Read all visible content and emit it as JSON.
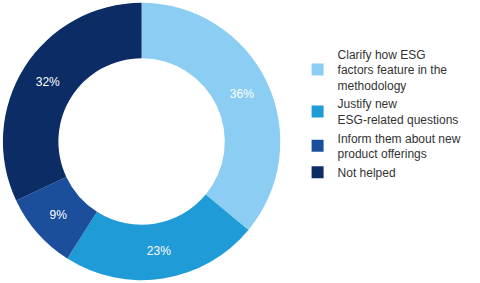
{
  "chart_data": {
    "type": "pie",
    "categories": [
      "Clarify how ESG factors feature in the methodology",
      "Justify new ESG-related questions",
      "Inform them about new product offerings",
      "Not helped"
    ],
    "values": [
      36,
      23,
      9,
      32
    ],
    "value_labels": [
      "36%",
      "23%",
      "9%",
      "32%"
    ],
    "colors": [
      "#8ccdf4",
      "#1f9bd7",
      "#1b4f9c",
      "#0c2c66"
    ],
    "data_labels": true,
    "legend": "right"
  }
}
